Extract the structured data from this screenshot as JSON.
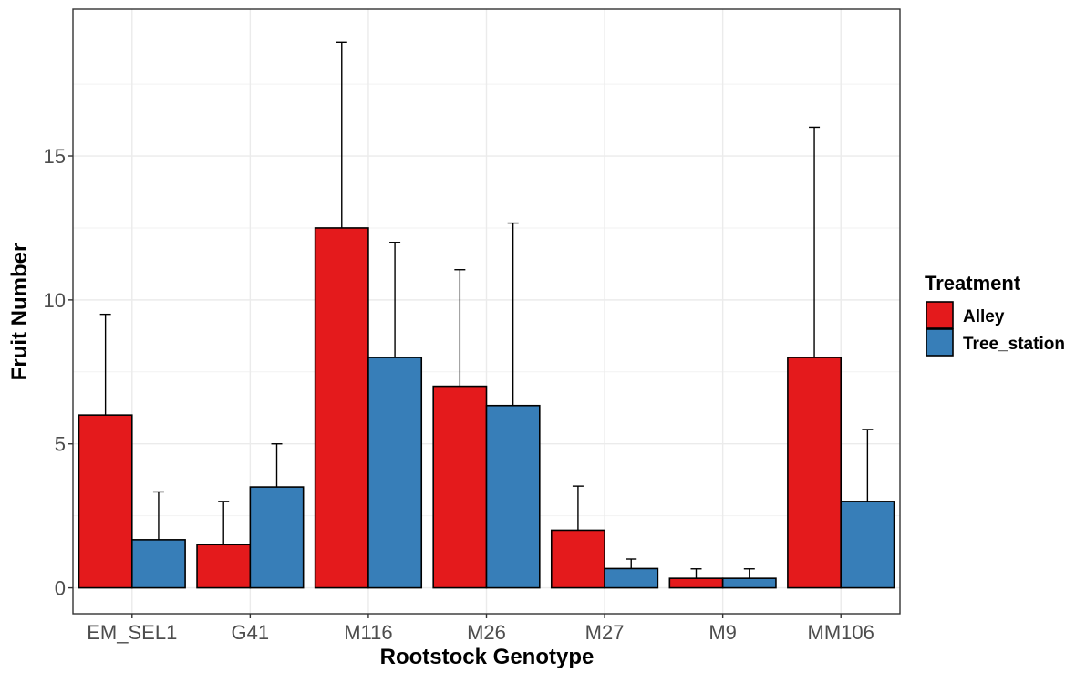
{
  "chart_data": {
    "type": "bar",
    "title": "",
    "xlabel": "Rootstock Genotype",
    "ylabel": "Fruit Number",
    "categories": [
      "EM_SEL1",
      "G41",
      "M116",
      "M26",
      "M27",
      "M9",
      "MM106"
    ],
    "series": [
      {
        "name": "Alley",
        "color": "#e41a1c",
        "values": [
          6,
          1.5,
          12.5,
          7,
          2,
          0.33,
          8
        ],
        "error_upper": [
          9.5,
          3,
          18.95,
          11.05,
          3.53,
          0.66,
          16
        ]
      },
      {
        "name": "Tree_station",
        "color": "#377eb8",
        "values": [
          1.67,
          3.5,
          8,
          6.33,
          0.67,
          0.33,
          3
        ],
        "error_upper": [
          3.33,
          5,
          12,
          12.67,
          1,
          0.66,
          5.5
        ]
      }
    ],
    "ylim": [
      -0.9,
      20.1
    ],
    "yticks": [
      0,
      5,
      10,
      15
    ],
    "grid": true,
    "legend_title": "Treatment",
    "legend_position": "right"
  }
}
